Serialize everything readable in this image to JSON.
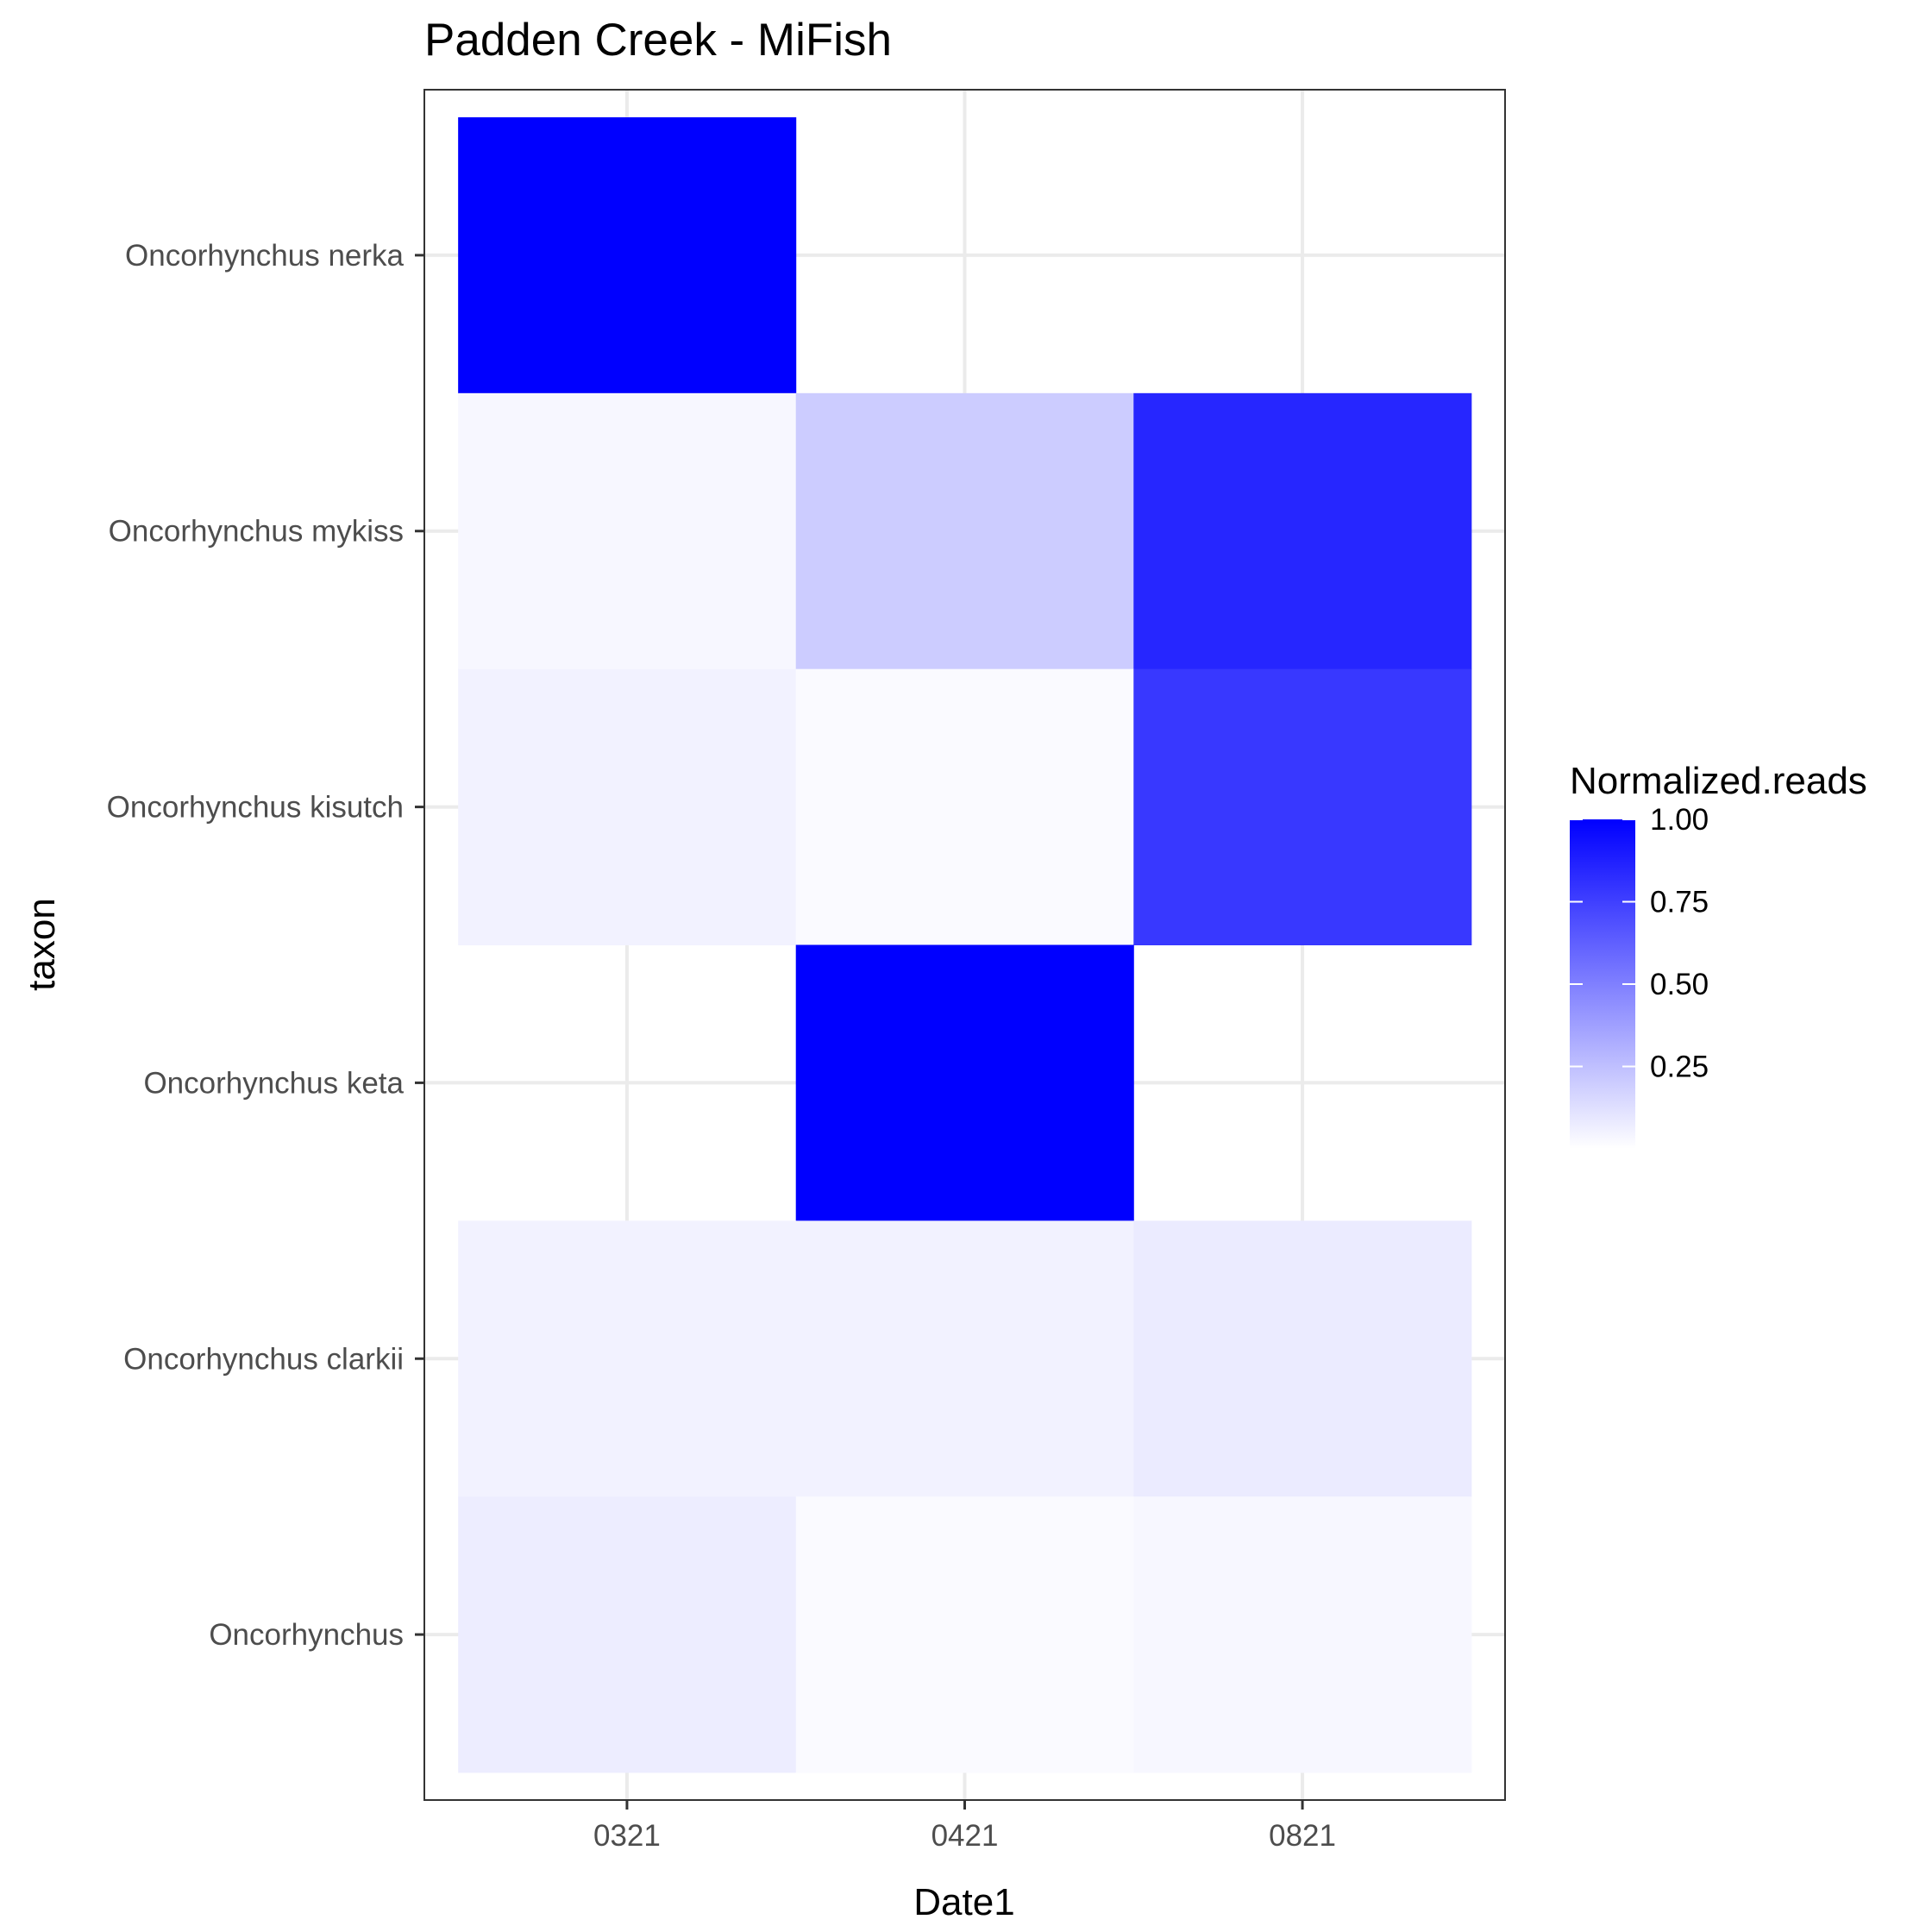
{
  "chart_data": {
    "type": "heatmap",
    "title": "Padden Creek - MiFish",
    "xlabel": "Date1",
    "ylabel": "taxon",
    "x_categories": [
      "0321",
      "0421",
      "0821"
    ],
    "y_categories": [
      "Oncorhynchus nerka",
      "Oncorhynchus mykiss",
      "Oncorhynchus kisutch",
      "Oncorhynchus keta",
      "Oncorhynchus clarkii",
      "Oncorhynchus"
    ],
    "values": [
      [
        1.0,
        null,
        null
      ],
      [
        0.03,
        0.2,
        0.85
      ],
      [
        0.05,
        0.02,
        0.78
      ],
      [
        null,
        1.0,
        null
      ],
      [
        0.05,
        0.05,
        0.08
      ],
      [
        0.07,
        0.02,
        0.03
      ]
    ],
    "legend": {
      "title": "Normalized.reads",
      "ticks": [
        1.0,
        0.75,
        0.5,
        0.25
      ],
      "tick_labels": [
        "1.00",
        "0.75",
        "0.50",
        "0.25"
      ],
      "range": [
        0,
        1
      ],
      "low_color": "#ffffff",
      "high_color": "#0000ff",
      "placement": "right"
    },
    "grid": true,
    "theme": "bw"
  }
}
